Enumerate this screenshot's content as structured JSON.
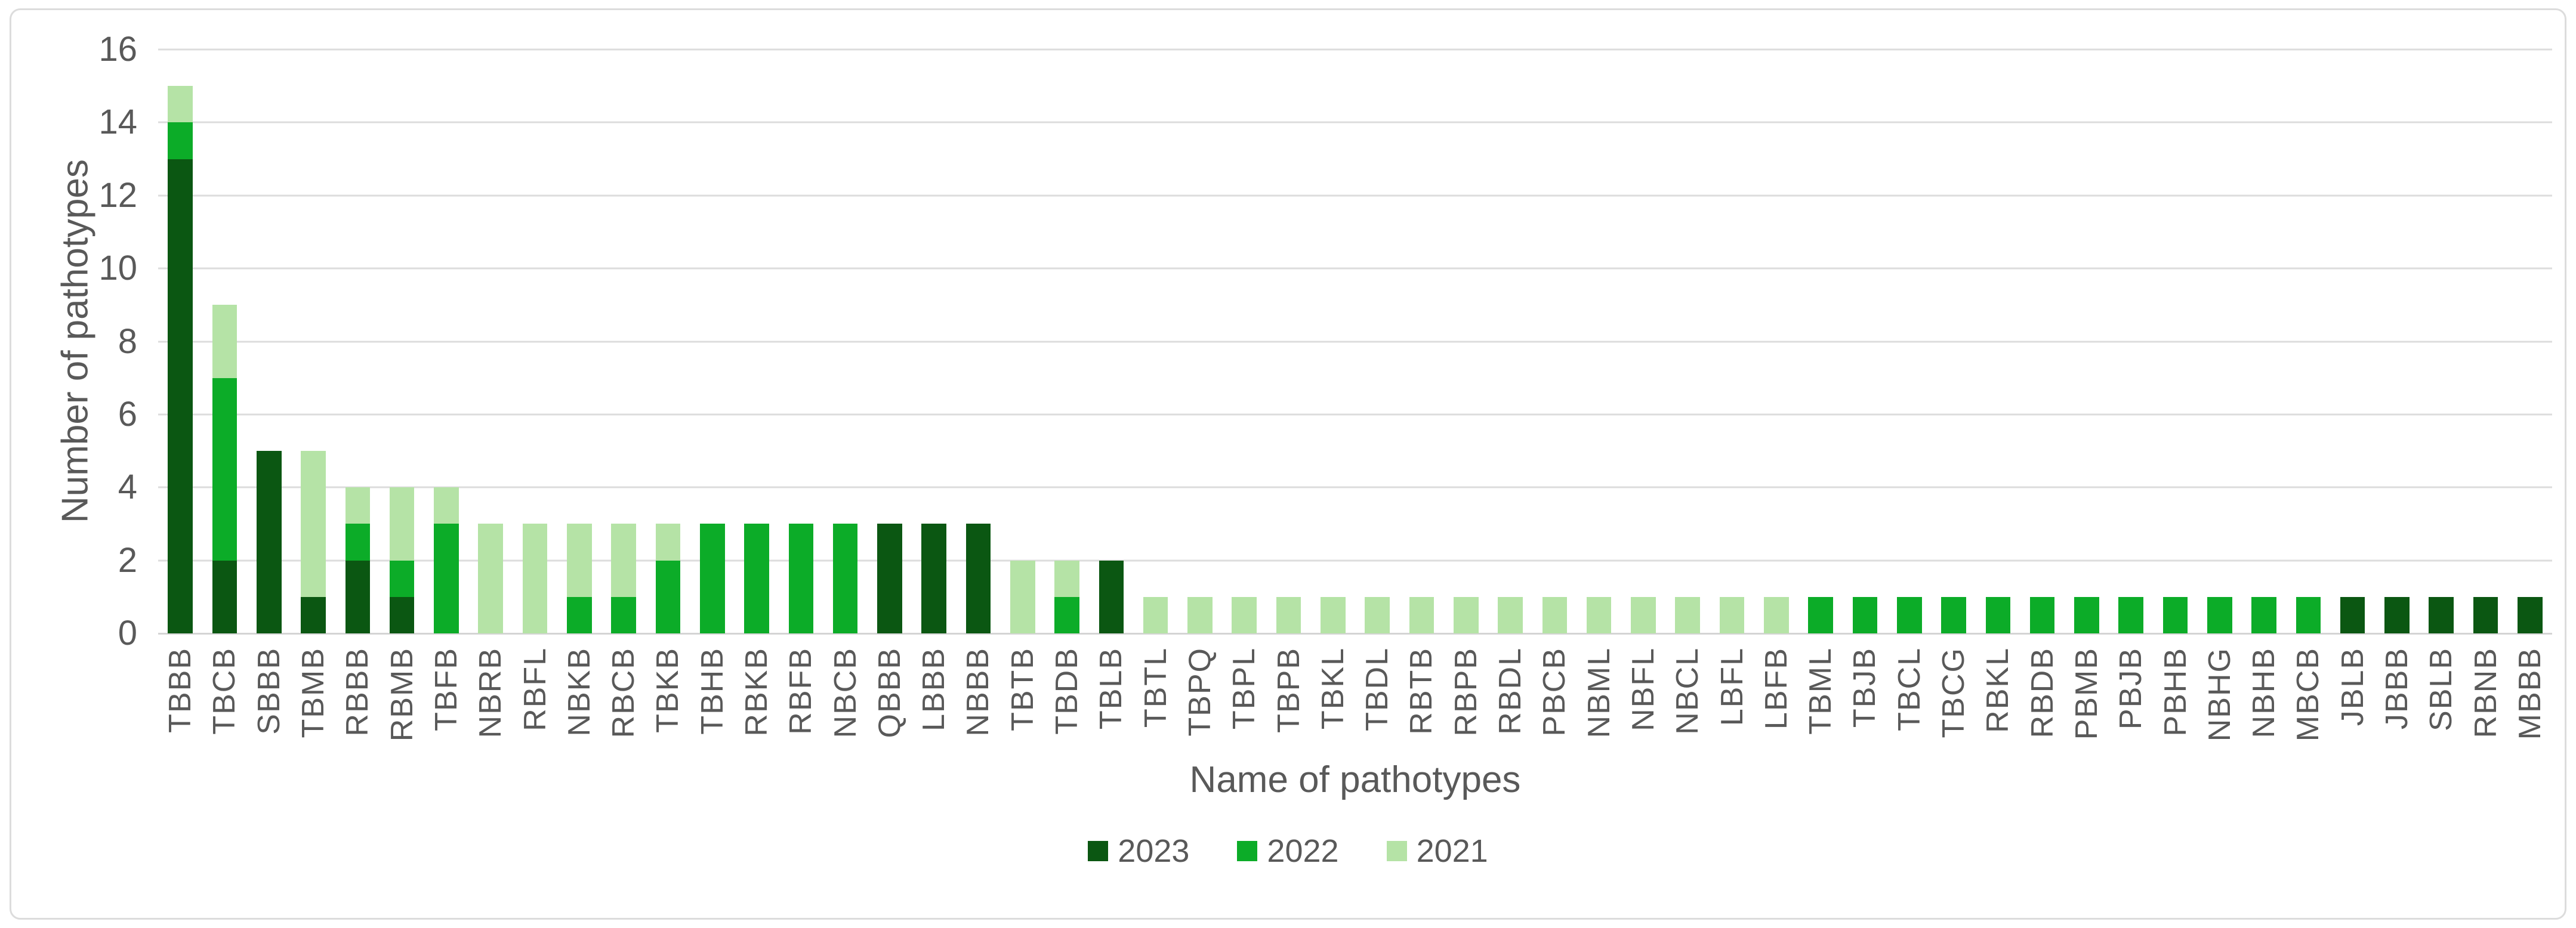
{
  "chart_data": {
    "type": "bar",
    "stacked": true,
    "title": "",
    "xlabel": "Name of pathotypes",
    "ylabel": "Number of pathotypes",
    "ylim": [
      0,
      16
    ],
    "yticks": [
      0,
      2,
      4,
      6,
      8,
      10,
      12,
      14,
      16
    ],
    "grid": true,
    "legend_position": "bottom",
    "categories": [
      "TBBB",
      "TBCB",
      "SBBB",
      "TBMB",
      "RBBB",
      "RBMB",
      "TBFB",
      "NBRB",
      "RBFL",
      "NBKB",
      "RBCB",
      "TBKB",
      "TBHB",
      "RBKB",
      "RBFB",
      "NBCB",
      "QBBB",
      "LBBB",
      "NBBB",
      "TBTB",
      "TBDB",
      "TBLB",
      "TBTL",
      "TBPQ",
      "TBPL",
      "TBPB",
      "TBKL",
      "TBDL",
      "RBTB",
      "RBPB",
      "RBDL",
      "PBCB",
      "NBML",
      "NBFL",
      "NBCL",
      "LBFL",
      "LBFB",
      "TBML",
      "TBJB",
      "TBCL",
      "TBCG",
      "RBKL",
      "RBDB",
      "PBMB",
      "PBJB",
      "PBHB",
      "NBHG",
      "NBHB",
      "MBCB",
      "JBLB",
      "JBBB",
      "SBLB",
      "RBNB",
      "MBBB"
    ],
    "series": [
      {
        "name": "2023",
        "color": "#0B5712",
        "values": [
          13,
          2,
          5,
          1,
          2,
          1,
          0,
          0,
          0,
          0,
          0,
          0,
          0,
          0,
          0,
          0,
          3,
          3,
          3,
          0,
          0,
          2,
          0,
          0,
          0,
          0,
          0,
          0,
          0,
          0,
          0,
          0,
          0,
          0,
          0,
          0,
          0,
          0,
          0,
          0,
          0,
          0,
          0,
          0,
          0,
          0,
          0,
          0,
          0,
          1,
          1,
          1,
          1,
          1
        ]
      },
      {
        "name": "2022",
        "color": "#0CAC28",
        "values": [
          1,
          5,
          0,
          0,
          1,
          1,
          3,
          0,
          0,
          1,
          1,
          2,
          3,
          3,
          3,
          3,
          0,
          0,
          0,
          0,
          1,
          0,
          0,
          0,
          0,
          0,
          0,
          0,
          0,
          0,
          0,
          0,
          0,
          0,
          0,
          0,
          0,
          1,
          1,
          1,
          1,
          1,
          1,
          1,
          1,
          1,
          1,
          1,
          1,
          0,
          0,
          0,
          0,
          0
        ]
      },
      {
        "name": "2021",
        "color": "#B5E3A6",
        "values": [
          1,
          2,
          0,
          4,
          1,
          2,
          1,
          3,
          3,
          2,
          2,
          1,
          0,
          0,
          0,
          0,
          0,
          0,
          0,
          2,
          1,
          0,
          1,
          1,
          1,
          1,
          1,
          1,
          1,
          1,
          1,
          1,
          1,
          1,
          1,
          1,
          1,
          0,
          0,
          0,
          0,
          0,
          0,
          0,
          0,
          0,
          0,
          0,
          0,
          0,
          0,
          0,
          0,
          0
        ]
      }
    ]
  }
}
